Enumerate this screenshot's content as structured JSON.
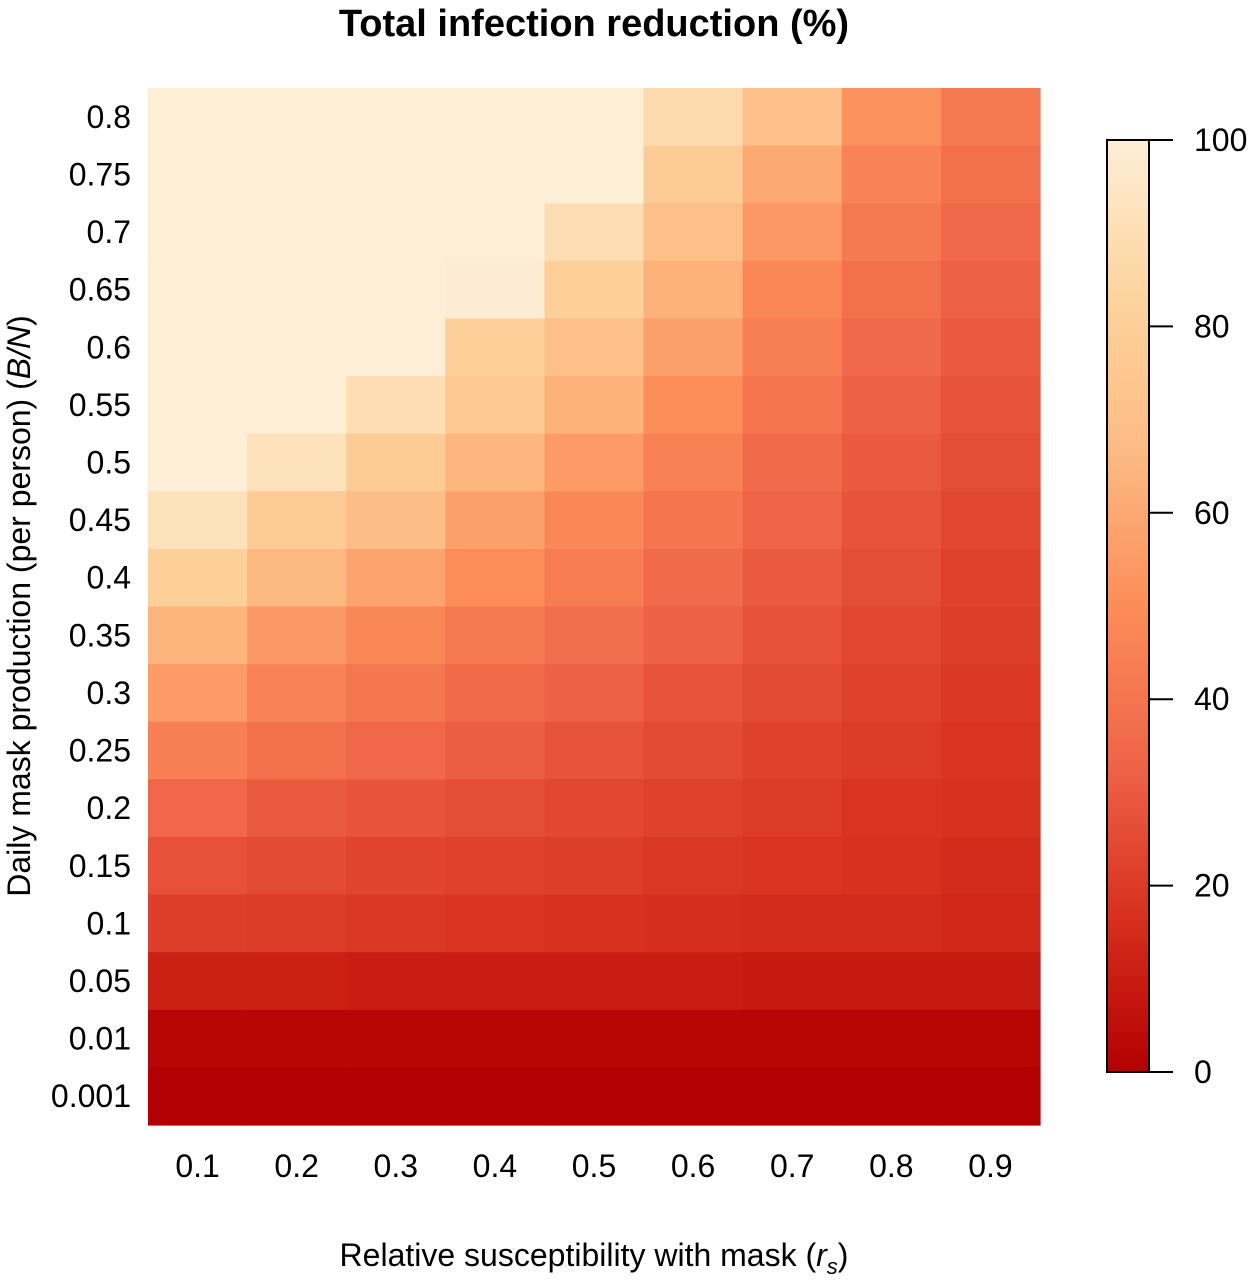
{
  "chart_data": {
    "type": "heatmap",
    "title": "Total infection reduction (%)",
    "xlabel": {
      "text": "Relative susceptibility with mask (",
      "symbol": "r",
      "subscript": "s",
      "close": ")"
    },
    "ylabel": {
      "text": "Daily mask production (per person) (",
      "symbol": "B/N",
      "close": ")"
    },
    "x_categories": [
      "0.1",
      "0.2",
      "0.3",
      "0.4",
      "0.5",
      "0.6",
      "0.7",
      "0.8",
      "0.9"
    ],
    "y_categories": [
      "0.8",
      "0.75",
      "0.7",
      "0.65",
      "0.6",
      "0.55",
      "0.5",
      "0.45",
      "0.4",
      "0.35",
      "0.3",
      "0.25",
      "0.2",
      "0.15",
      "0.1",
      "0.05",
      "0.01",
      "0.001"
    ],
    "values": [
      [
        100,
        100,
        100,
        100,
        100,
        88,
        70,
        52,
        42
      ],
      [
        100,
        100,
        100,
        100,
        100,
        78,
        60,
        46,
        38
      ],
      [
        100,
        100,
        100,
        100,
        90,
        70,
        54,
        42,
        35
      ],
      [
        100,
        100,
        100,
        99,
        80,
        63,
        48,
        38,
        32
      ],
      [
        100,
        100,
        100,
        80,
        70,
        57,
        44,
        35,
        30
      ],
      [
        100,
        100,
        90,
        75,
        63,
        50,
        40,
        32,
        28
      ],
      [
        100,
        92,
        78,
        65,
        55,
        45,
        36,
        30,
        26
      ],
      [
        92,
        78,
        68,
        57,
        48,
        40,
        33,
        28,
        24
      ],
      [
        80,
        66,
        58,
        50,
        43,
        36,
        30,
        26,
        22
      ],
      [
        64,
        54,
        48,
        42,
        37,
        32,
        27,
        24,
        21
      ],
      [
        55,
        46,
        41,
        36,
        32,
        28,
        25,
        22,
        19
      ],
      [
        44,
        38,
        34,
        31,
        28,
        25,
        22,
        20,
        18
      ],
      [
        34,
        30,
        28,
        26,
        24,
        22,
        20,
        18,
        17
      ],
      [
        27,
        25,
        23,
        22,
        21,
        19,
        18,
        17,
        15
      ],
      [
        21,
        20,
        19,
        18,
        17,
        16,
        15,
        15,
        14
      ],
      [
        11,
        11,
        10,
        10,
        10,
        10,
        9,
        9,
        9
      ],
      [
        2,
        2,
        2,
        2,
        2,
        2,
        2,
        2,
        2
      ],
      [
        0,
        0,
        0,
        0,
        0,
        0,
        0,
        0,
        0
      ]
    ],
    "zlim": [
      0,
      100
    ],
    "colorbar": {
      "ticks": [
        "0",
        "20",
        "40",
        "60",
        "80",
        "100"
      ],
      "tick_values": [
        0,
        20,
        40,
        60,
        80,
        100
      ]
    },
    "colormap": [
      "#b30000",
      "#d7301f",
      "#ef6548",
      "#fc8d59",
      "#fdbb84",
      "#fdd49e",
      "#fdeed6"
    ]
  }
}
